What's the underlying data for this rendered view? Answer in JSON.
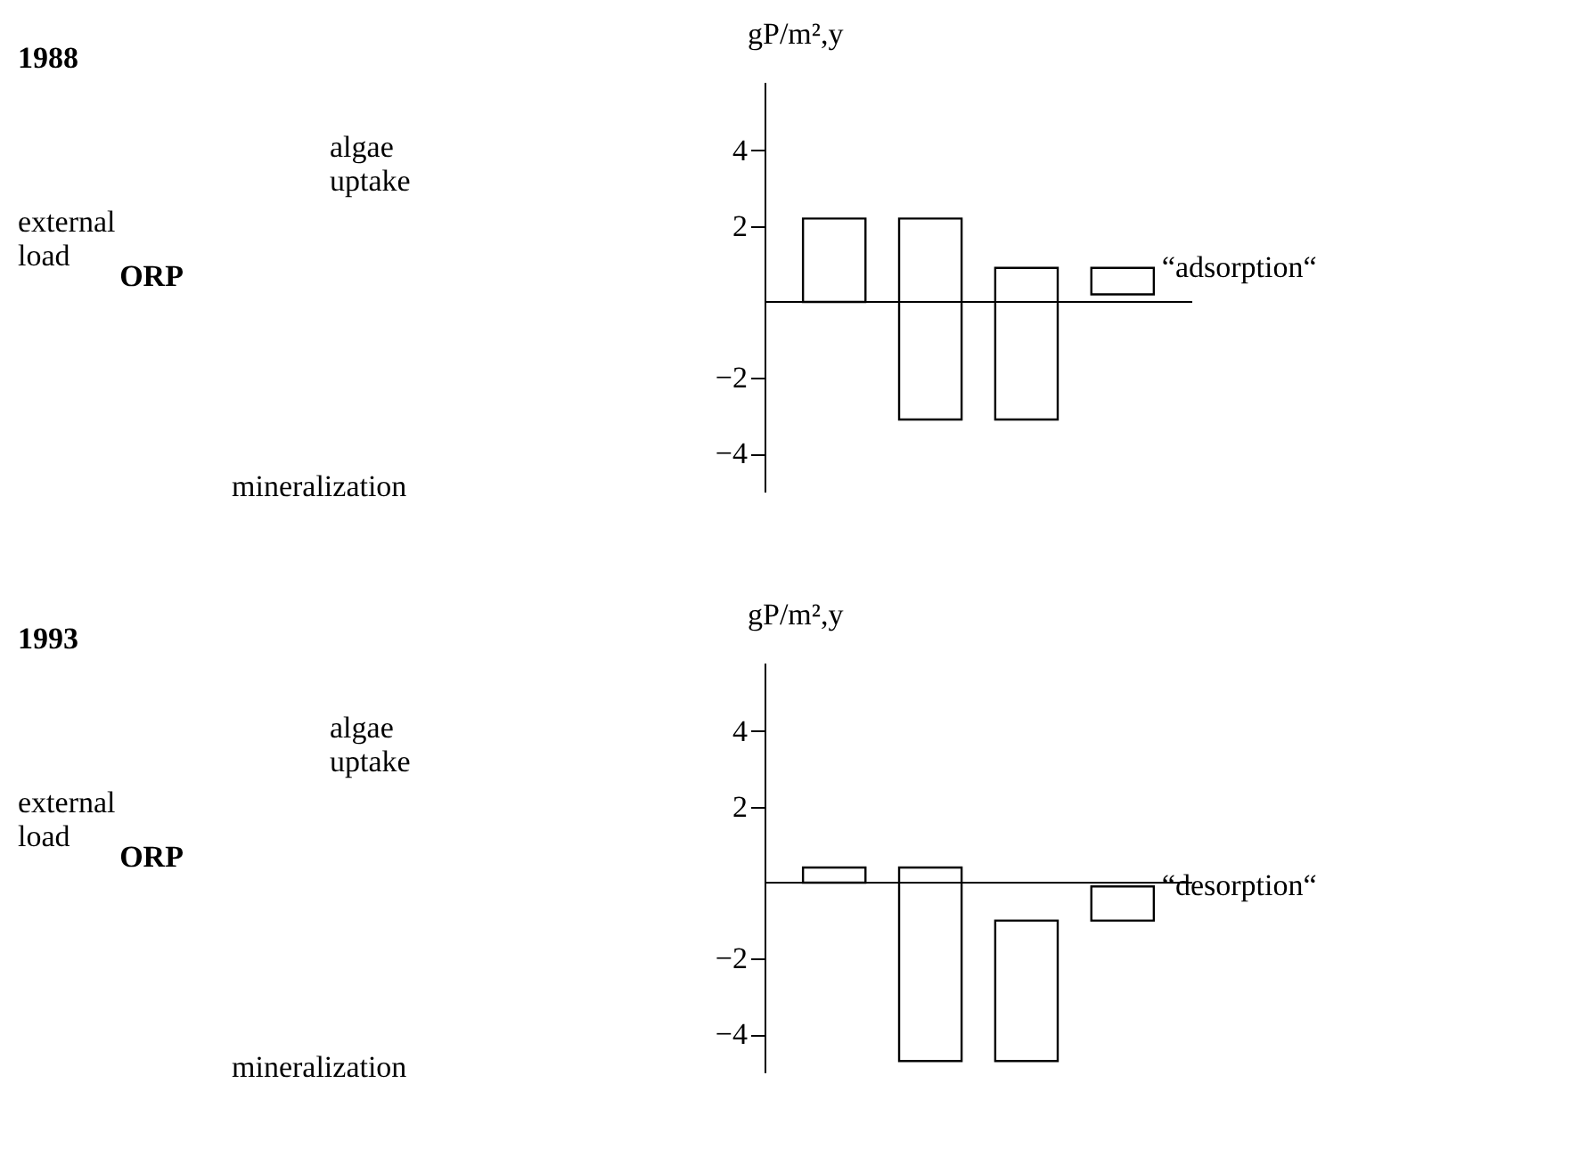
{
  "chart_data": [
    {
      "type": "other",
      "title": "1988",
      "annotations": [
        "algae\nuptake",
        "external\nload",
        "ORP",
        "mineralization"
      ]
    },
    {
      "type": "bar",
      "ylabel": "gP/m²,y",
      "categories": [
        null,
        null,
        null,
        null
      ],
      "base": [
        0,
        2.2,
        -3.1,
        0.9
      ],
      "values": [
        2.2,
        -5.3,
        4.0,
        -0.7
      ],
      "color": "#ffffff",
      "ylim": [
        -5,
        5.8
      ],
      "yticks": [
        -4,
        -2,
        2,
        4
      ],
      "tick_labels": "y",
      "grid": false,
      "annotations": [
        "“adsorption“"
      ]
    },
    {
      "type": "other",
      "title": "1993",
      "annotations": [
        "algae\nuptake",
        "external\nload",
        "ORP",
        "mineralization"
      ]
    },
    {
      "type": "bar",
      "ylabel": "gP/m²,y",
      "categories": [
        null,
        null,
        null,
        null
      ],
      "base": [
        0,
        0.4,
        -4.7,
        -1.0
      ],
      "values": [
        0.4,
        -5.1,
        3.7,
        0.9
      ],
      "color": "#ffffff",
      "ylim": [
        -5,
        5.8
      ],
      "yticks": [
        -4,
        -2,
        2,
        4
      ],
      "tick_labels": "y",
      "grid": false,
      "annotations": [
        "“desorption“"
      ]
    }
  ]
}
